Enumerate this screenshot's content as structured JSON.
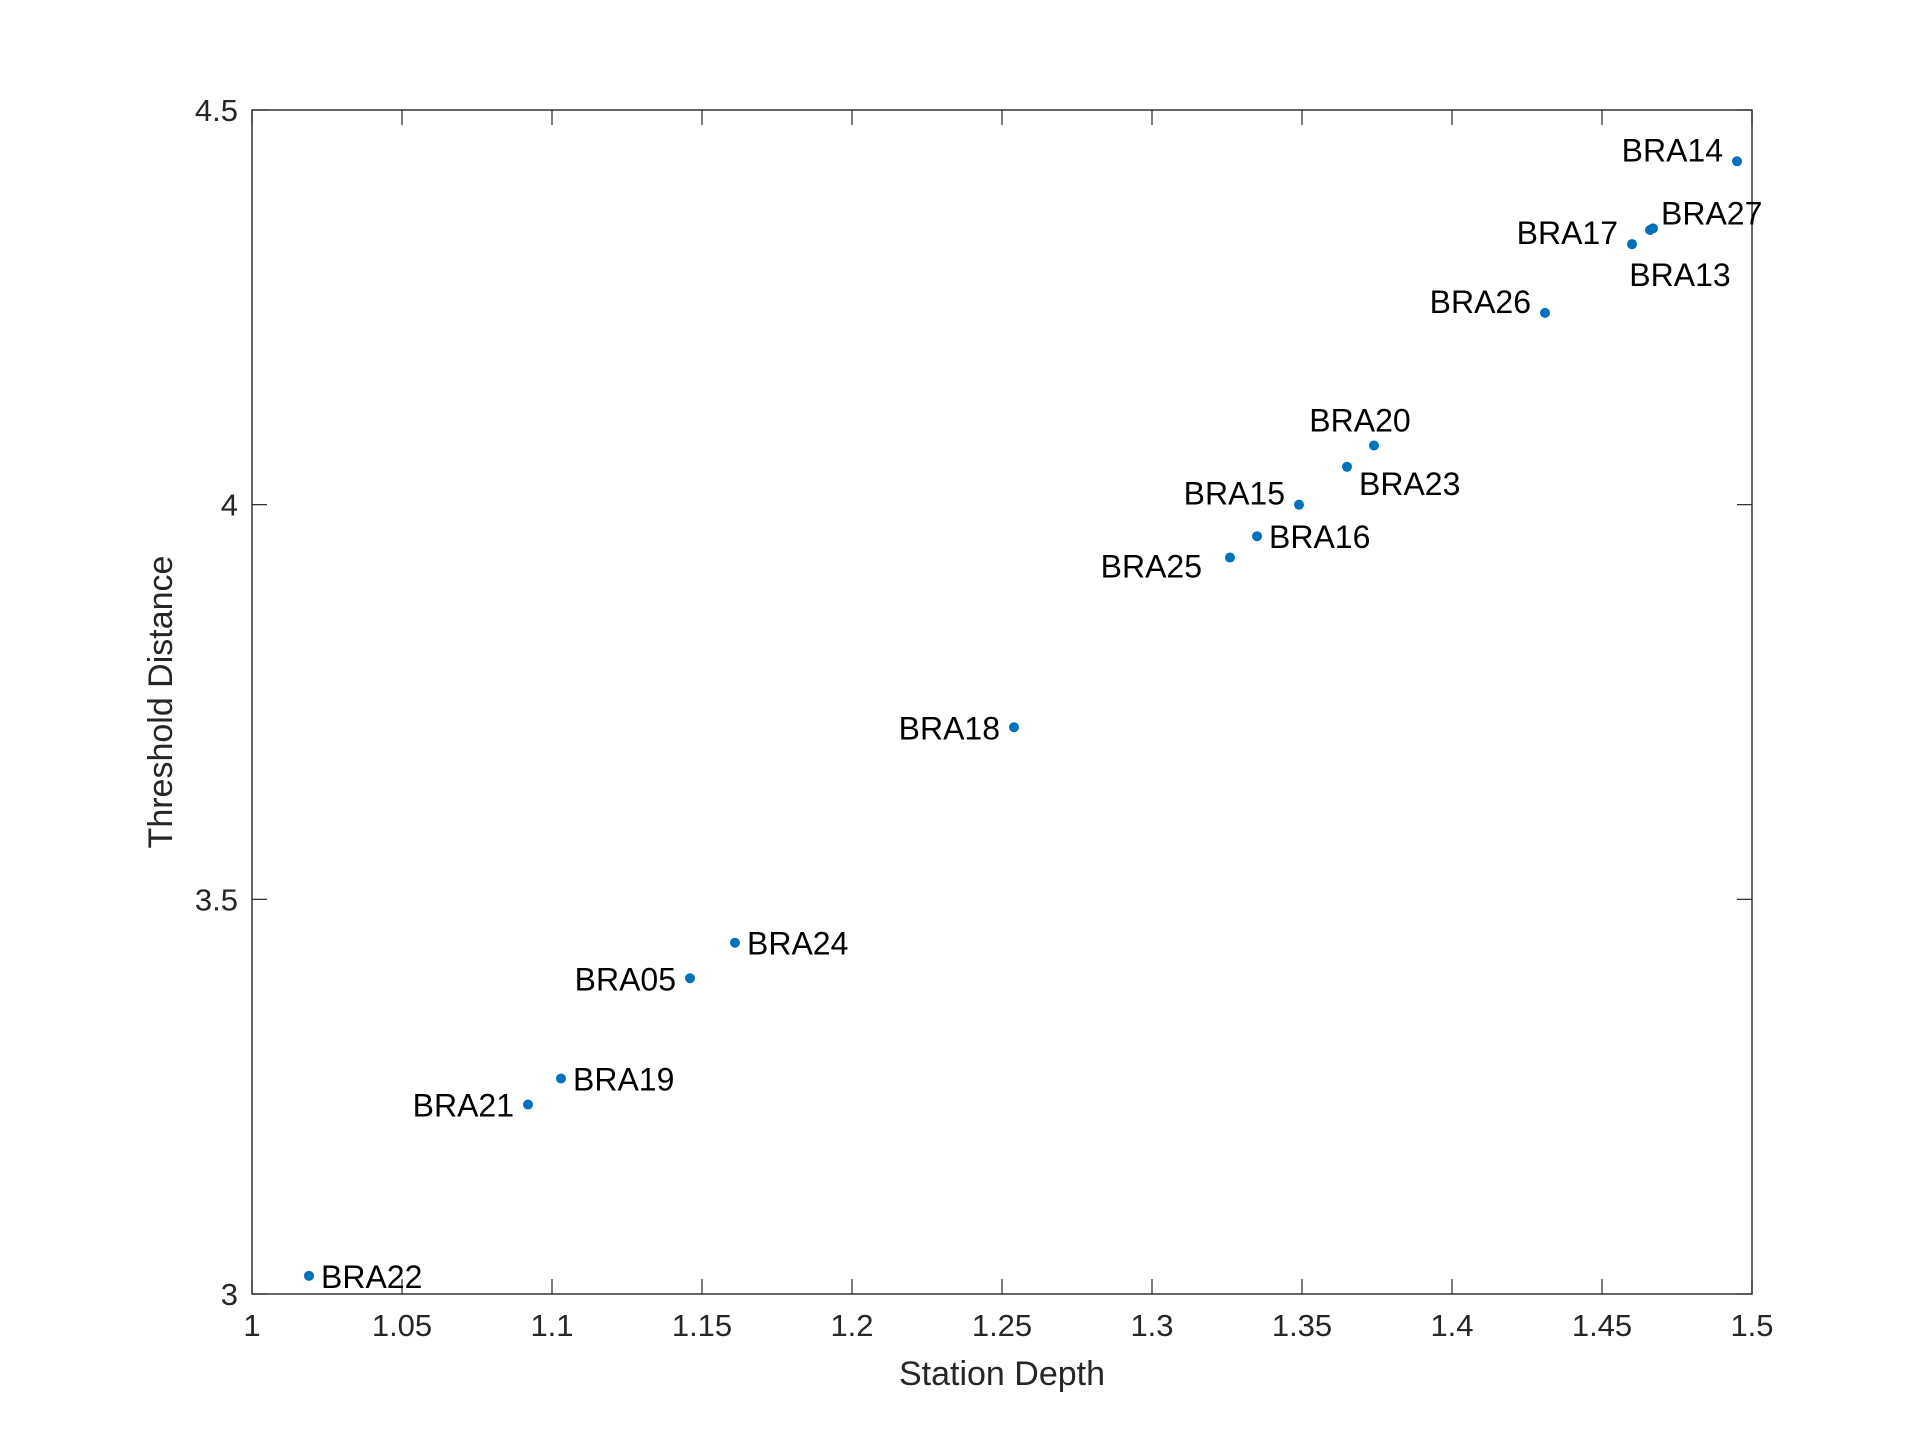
{
  "chart_data": {
    "type": "scatter",
    "xlabel": "Station Depth",
    "ylabel": "Threshold Distance",
    "xlim": [
      1,
      1.5
    ],
    "ylim": [
      3,
      4.5
    ],
    "xticks": [
      "1",
      "1.05",
      "1.1",
      "1.15",
      "1.2",
      "1.25",
      "1.3",
      "1.35",
      "1.4",
      "1.45",
      "1.5"
    ],
    "yticks": [
      "3",
      "3.5",
      "4",
      "4.5"
    ],
    "grid": false,
    "marker_color": "#0072BD",
    "points": [
      {
        "label": "BRA14",
        "x": 1.495,
        "y": 4.435,
        "label_side": "left-up"
      },
      {
        "label": "BRA17",
        "x": 1.46,
        "y": 4.33,
        "label_side": "left-up"
      },
      {
        "label": "BRA27",
        "x": 1.467,
        "y": 4.35,
        "label_side": "right-up"
      },
      {
        "label": "BRA13",
        "x": 1.466,
        "y": 4.348,
        "label_side": "below"
      },
      {
        "label": "BRA26",
        "x": 1.431,
        "y": 4.243,
        "label_side": "left-up"
      },
      {
        "label": "BRA20",
        "x": 1.374,
        "y": 4.075,
        "label_side": "above"
      },
      {
        "label": "BRA23",
        "x": 1.365,
        "y": 4.048,
        "label_side": "right-down"
      },
      {
        "label": "BRA15",
        "x": 1.349,
        "y": 4.0,
        "label_side": "left-up"
      },
      {
        "label": "BRA16",
        "x": 1.335,
        "y": 3.96,
        "label_side": "right"
      },
      {
        "label": "BRA25",
        "x": 1.326,
        "y": 3.933,
        "label_side": "left-down"
      },
      {
        "label": "BRA18",
        "x": 1.254,
        "y": 3.718,
        "label_side": "left"
      },
      {
        "label": "BRA24",
        "x": 1.161,
        "y": 3.445,
        "label_side": "right"
      },
      {
        "label": "BRA05",
        "x": 1.146,
        "y": 3.4,
        "label_side": "left"
      },
      {
        "label": "BRA19",
        "x": 1.103,
        "y": 3.273,
        "label_side": "right"
      },
      {
        "label": "BRA21",
        "x": 1.092,
        "y": 3.24,
        "label_side": "left"
      },
      {
        "label": "BRA22",
        "x": 1.019,
        "y": 3.023,
        "label_side": "right"
      }
    ]
  }
}
